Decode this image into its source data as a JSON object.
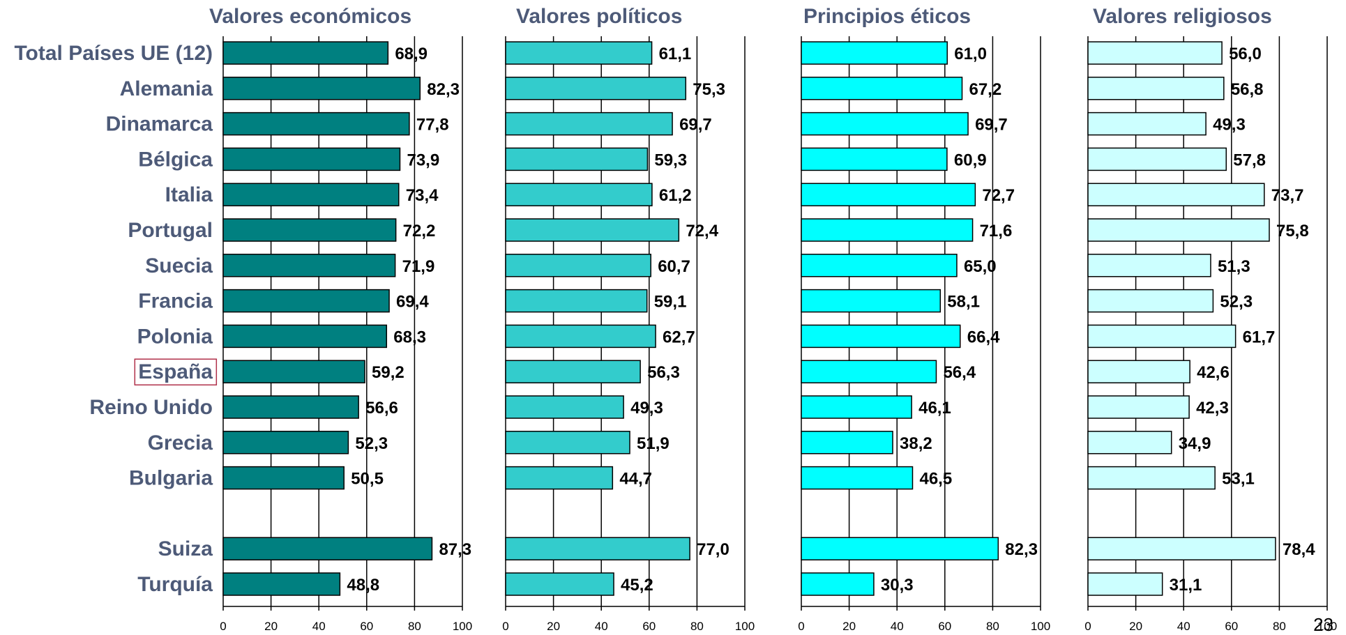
{
  "page_number": "23",
  "highlight": {
    "category": "España",
    "color": "#b0304a"
  },
  "chart_data": [
    {
      "type": "bar",
      "orientation": "horizontal",
      "title": "Valores económicos",
      "color": "#008080",
      "categories": [
        "Total Países UE (12)",
        "Alemania",
        "Dinamarca",
        "Bélgica",
        "Italia",
        "Portugal",
        "Suecia",
        "Francia",
        "Polonia",
        "España",
        "Reino Unido",
        "Grecia",
        "Bulgaria",
        "",
        "Suiza",
        "Turquía"
      ],
      "values": [
        68.9,
        82.3,
        77.8,
        73.9,
        73.4,
        72.2,
        71.9,
        69.4,
        68.3,
        59.2,
        56.6,
        52.3,
        50.5,
        null,
        87.3,
        48.8
      ],
      "value_labels": [
        "68,9",
        "82,3",
        "77,8",
        "73,9",
        "73,4",
        "72,2",
        "71,9",
        "69,4",
        "68,3",
        "59,2",
        "56,6",
        "52,3",
        "50,5",
        "",
        "87,3",
        "48,8"
      ],
      "xlim": [
        0,
        100
      ],
      "xticks": [
        "0",
        "20",
        "40",
        "60",
        "80",
        "100"
      ],
      "grid": "vertical"
    },
    {
      "type": "bar",
      "orientation": "horizontal",
      "title": "Valores políticos",
      "color": "#33cccc",
      "categories": [
        "Total Países UE (12)",
        "Alemania",
        "Dinamarca",
        "Bélgica",
        "Italia",
        "Portugal",
        "Suecia",
        "Francia",
        "Polonia",
        "España",
        "Reino Unido",
        "Grecia",
        "Bulgaria",
        "",
        "Suiza",
        "Turquía"
      ],
      "values": [
        61.1,
        75.3,
        69.7,
        59.3,
        61.2,
        72.4,
        60.7,
        59.1,
        62.7,
        56.3,
        49.3,
        51.9,
        44.7,
        null,
        77.0,
        45.2
      ],
      "value_labels": [
        "61,1",
        "75,3",
        "69,7",
        "59,3",
        "61,2",
        "72,4",
        "60,7",
        "59,1",
        "62,7",
        "56,3",
        "49,3",
        "51,9",
        "44,7",
        "",
        "77,0",
        "45,2"
      ],
      "xlim": [
        0,
        100
      ],
      "xticks": [
        "0",
        "20",
        "40",
        "60",
        "80",
        "100"
      ],
      "grid": "vertical"
    },
    {
      "type": "bar",
      "orientation": "horizontal",
      "title": "Principios éticos",
      "color": "#00ffff",
      "categories": [
        "Total Países UE (12)",
        "Alemania",
        "Dinamarca",
        "Bélgica",
        "Italia",
        "Portugal",
        "Suecia",
        "Francia",
        "Polonia",
        "España",
        "Reino Unido",
        "Grecia",
        "Bulgaria",
        "",
        "Suiza",
        "Turquía"
      ],
      "values": [
        61.0,
        67.2,
        69.7,
        60.9,
        72.7,
        71.6,
        65.0,
        58.1,
        66.4,
        56.4,
        46.1,
        38.2,
        46.5,
        null,
        82.3,
        30.3
      ],
      "value_labels": [
        "61,0",
        "67,2",
        "69,7",
        "60,9",
        "72,7",
        "71,6",
        "65,0",
        "58,1",
        "66,4",
        "56,4",
        "46,1",
        "38,2",
        "46,5",
        "",
        "82,3",
        "30,3"
      ],
      "xlim": [
        0,
        100
      ],
      "xticks": [
        "0",
        "20",
        "40",
        "60",
        "80",
        "100"
      ],
      "grid": "vertical"
    },
    {
      "type": "bar",
      "orientation": "horizontal",
      "title": "Valores religiosos",
      "color": "#ccffff",
      "categories": [
        "Total Países UE (12)",
        "Alemania",
        "Dinamarca",
        "Bélgica",
        "Italia",
        "Portugal",
        "Suecia",
        "Francia",
        "Polonia",
        "España",
        "Reino Unido",
        "Grecia",
        "Bulgaria",
        "",
        "Suiza",
        "Turquía"
      ],
      "values": [
        56.0,
        56.8,
        49.3,
        57.8,
        73.7,
        75.8,
        51.3,
        52.3,
        61.7,
        42.6,
        42.3,
        34.9,
        53.1,
        null,
        78.4,
        31.1
      ],
      "value_labels": [
        "56,0",
        "56,8",
        "49,3",
        "57,8",
        "73,7",
        "75,8",
        "51,3",
        "52,3",
        "61,7",
        "42,6",
        "42,3",
        "34,9",
        "53,1",
        "",
        "78,4",
        "31,1"
      ],
      "xlim": [
        0,
        100
      ],
      "xticks": [
        "0",
        "20",
        "40",
        "60",
        "80",
        "100"
      ],
      "grid": "vertical"
    }
  ]
}
